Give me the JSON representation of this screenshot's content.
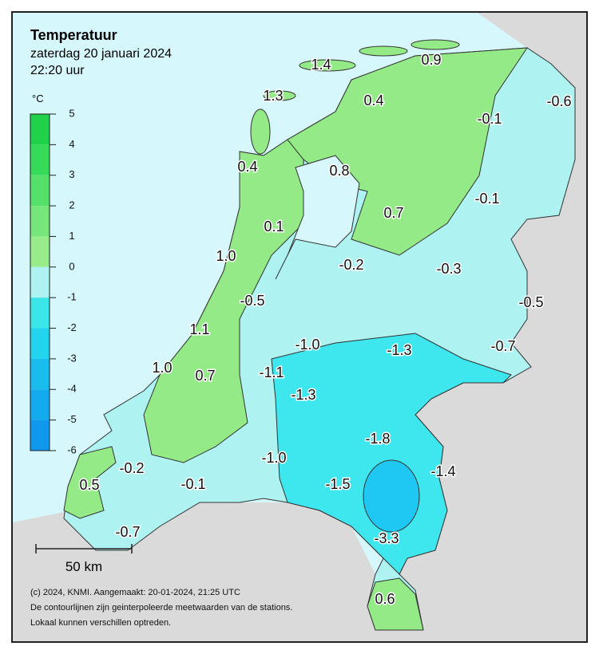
{
  "header": {
    "title": "Temperatuur",
    "date": "zaterdag 20 januari 2024",
    "time": "22:20 uur"
  },
  "legend": {
    "unit": "°C",
    "ticks": [
      5,
      4,
      3,
      2,
      1,
      0,
      -1,
      -2,
      -3,
      -4,
      -5,
      -6
    ]
  },
  "stations": [
    "1.4",
    "0.9",
    "1.3",
    "0.4",
    "-0.6",
    "-0.1",
    "0.4",
    "0.8",
    "-0.1",
    "0.7",
    "0.1",
    "1.0",
    "-0.2",
    "-0.3",
    "-0.5",
    "-0.5",
    "1.1",
    "-1.0",
    "-1.3",
    "-0.7",
    "1.0",
    "0.7",
    "-1.1",
    "-1.3",
    "-1.8",
    "-1.0",
    "-0.2",
    "-1.4",
    "0.5",
    "-0.1",
    "-1.5",
    "-0.7",
    "-3.3",
    "0.6"
  ],
  "scale": {
    "label": "50 km"
  },
  "footer": {
    "lines": [
      "(c) 2024, KNMI. Aangemaakt: 20-01-2024, 21:25 UTC",
      "De contourlijnen zijn geinterpoleerde meetwaarden van de stations.",
      "Lokaal kunnen verschillen optreden."
    ]
  }
}
